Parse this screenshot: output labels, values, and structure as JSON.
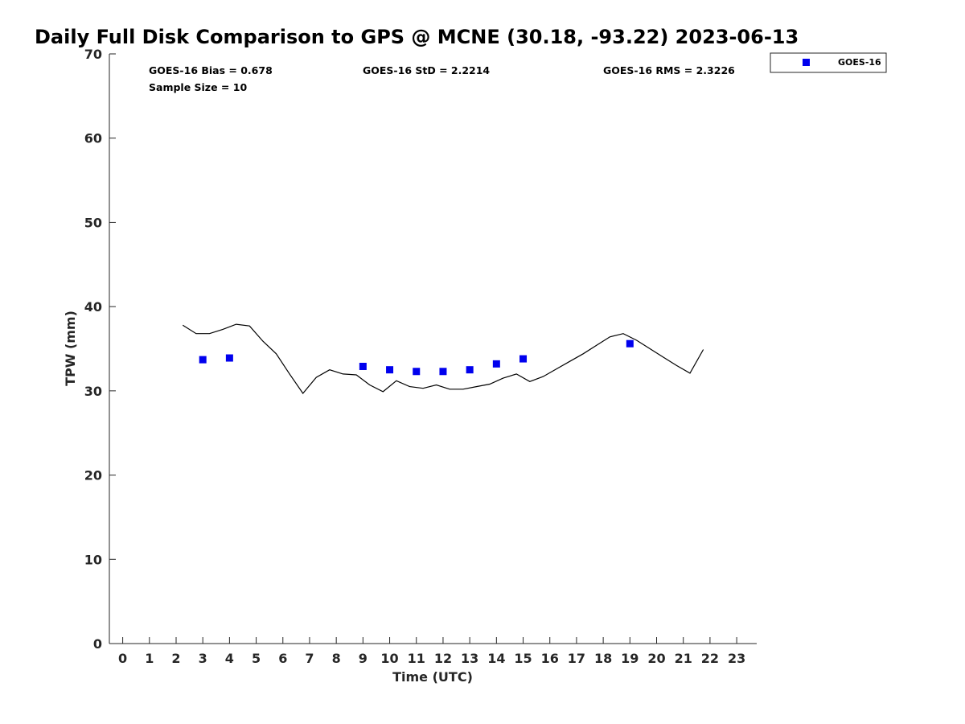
{
  "chart_data": {
    "type": "scatter",
    "title": "Daily Full Disk Comparison to GPS @ MCNE (30.18, -93.22) 2023-06-13",
    "xlabel": "Time (UTC)",
    "ylabel": "TPW (mm)",
    "xlim": [
      -0.5,
      23.75
    ],
    "ylim": [
      0,
      70
    ],
    "x_ticks": [
      "0",
      "1",
      "2",
      "3",
      "4",
      "5",
      "6",
      "7",
      "8",
      "9",
      "10",
      "11",
      "12",
      "13",
      "14",
      "15",
      "16",
      "17",
      "18",
      "19",
      "20",
      "21",
      "22",
      "23"
    ],
    "y_ticks": [
      "0",
      "10",
      "20",
      "30",
      "40",
      "50",
      "60",
      "70"
    ],
    "grid": false,
    "legend_position": "top-right (outside plot)",
    "stats": {
      "bias": "GOES-16 Bias = 0.678",
      "sample_size": "Sample Size = 10",
      "std": "GOES-16 StD = 2.2214",
      "rms": "GOES-16 RMS = 2.3226"
    },
    "series": [
      {
        "name": "GOES-16",
        "kind": "scatter",
        "marker": "square",
        "color": "#0000ee",
        "x": [
          3,
          4,
          9,
          10,
          11,
          12,
          13,
          14,
          15,
          19
        ],
        "y": [
          33.7,
          33.9,
          32.9,
          32.5,
          32.3,
          32.3,
          32.5,
          33.2,
          33.8,
          35.6
        ]
      },
      {
        "kind": "line",
        "color": "#000000",
        "x": [
          2.25,
          2.75,
          3.25,
          3.75,
          4.25,
          4.75,
          5.25,
          5.75,
          6.25,
          6.75,
          7.25,
          7.75,
          8.25,
          8.75,
          9.25,
          9.75,
          10.25,
          10.75,
          11.25,
          11.75,
          12.25,
          12.75,
          13.25,
          13.75,
          14.25,
          14.75,
          15.25,
          15.75,
          16.25,
          16.75,
          17.25,
          17.75,
          18.25,
          18.75,
          19.25,
          19.75,
          20.25,
          20.75,
          21.25,
          21.75
        ],
        "y": [
          37.8,
          36.8,
          36.8,
          37.3,
          37.9,
          37.7,
          35.9,
          34.4,
          32.0,
          29.7,
          31.6,
          32.5,
          32.0,
          31.9,
          30.7,
          29.9,
          31.2,
          30.5,
          30.3,
          30.7,
          30.2,
          30.2,
          30.5,
          30.8,
          31.5,
          32.0,
          31.1,
          31.7,
          32.6,
          33.5,
          34.4,
          35.4,
          36.4,
          36.8,
          36.0,
          35.0,
          34.0,
          33.0,
          32.1,
          34.9
        ]
      }
    ]
  }
}
